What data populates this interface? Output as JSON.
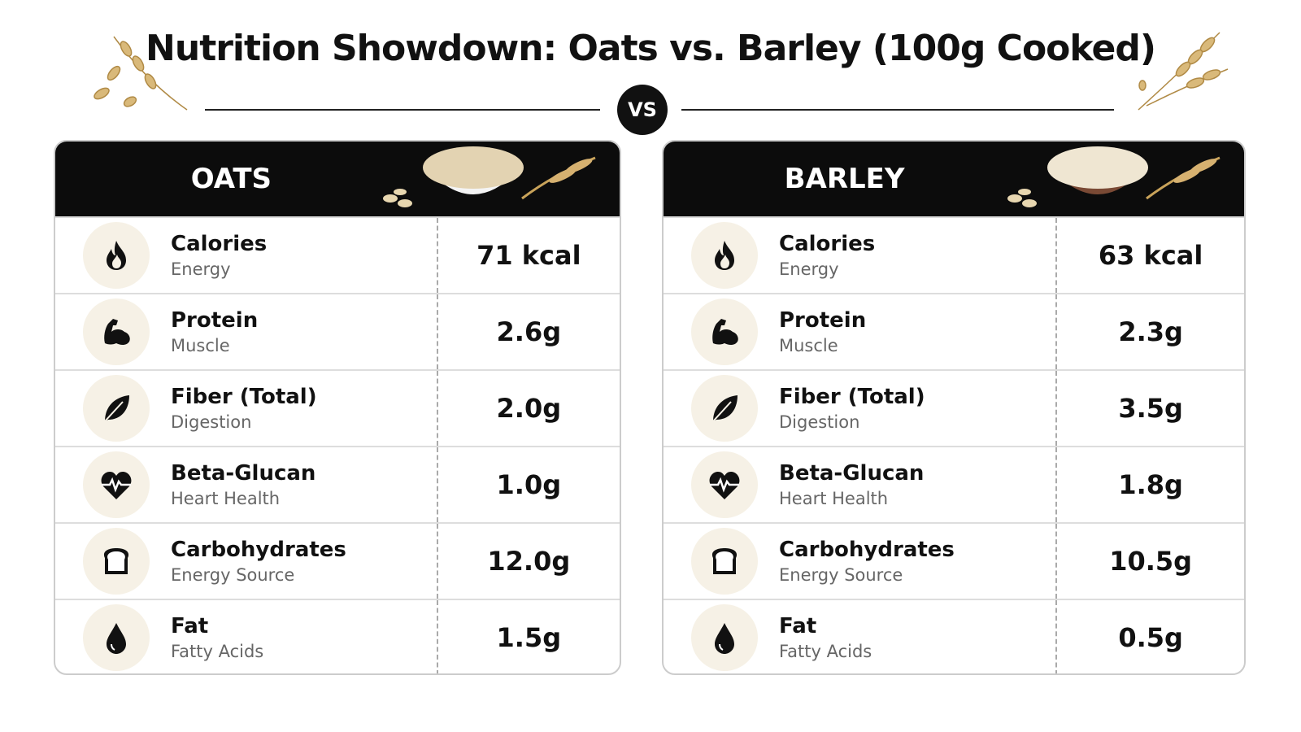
{
  "header": {
    "title": "Nutrition Showdown: Oats vs. Barley (100g Cooked)",
    "vs": "VS"
  },
  "panels": [
    {
      "name": "OATS",
      "rows": [
        {
          "label": "Calories",
          "sublabel": "Energy",
          "value": "71 kcal"
        },
        {
          "label": "Protein",
          "sublabel": "Muscle",
          "value": "2.6g"
        },
        {
          "label": "Fiber (Total)",
          "sublabel": "Digestion",
          "value": "2.0g"
        },
        {
          "label": "Beta-Glucan",
          "sublabel": "Heart Health",
          "value": "1.0g"
        },
        {
          "label": "Carbohydrates",
          "sublabel": "Energy Source",
          "value": "12.0g"
        },
        {
          "label": "Fat",
          "sublabel": "Fatty Acids",
          "value": "1.5g"
        }
      ]
    },
    {
      "name": "BARLEY",
      "rows": [
        {
          "label": "Calories",
          "sublabel": "Energy",
          "value": "63 kcal"
        },
        {
          "label": "Protein",
          "sublabel": "Muscle",
          "value": "2.3g"
        },
        {
          "label": "Fiber (Total)",
          "sublabel": "Digestion",
          "value": "3.5g"
        },
        {
          "label": "Beta-Glucan",
          "sublabel": "Heart Health",
          "value": "1.8g"
        },
        {
          "label": "Carbohydrates",
          "sublabel": "Energy Source",
          "value": "10.5g"
        },
        {
          "label": "Fat",
          "sublabel": "Fatty Acids",
          "value": "0.5g"
        }
      ]
    }
  ]
}
